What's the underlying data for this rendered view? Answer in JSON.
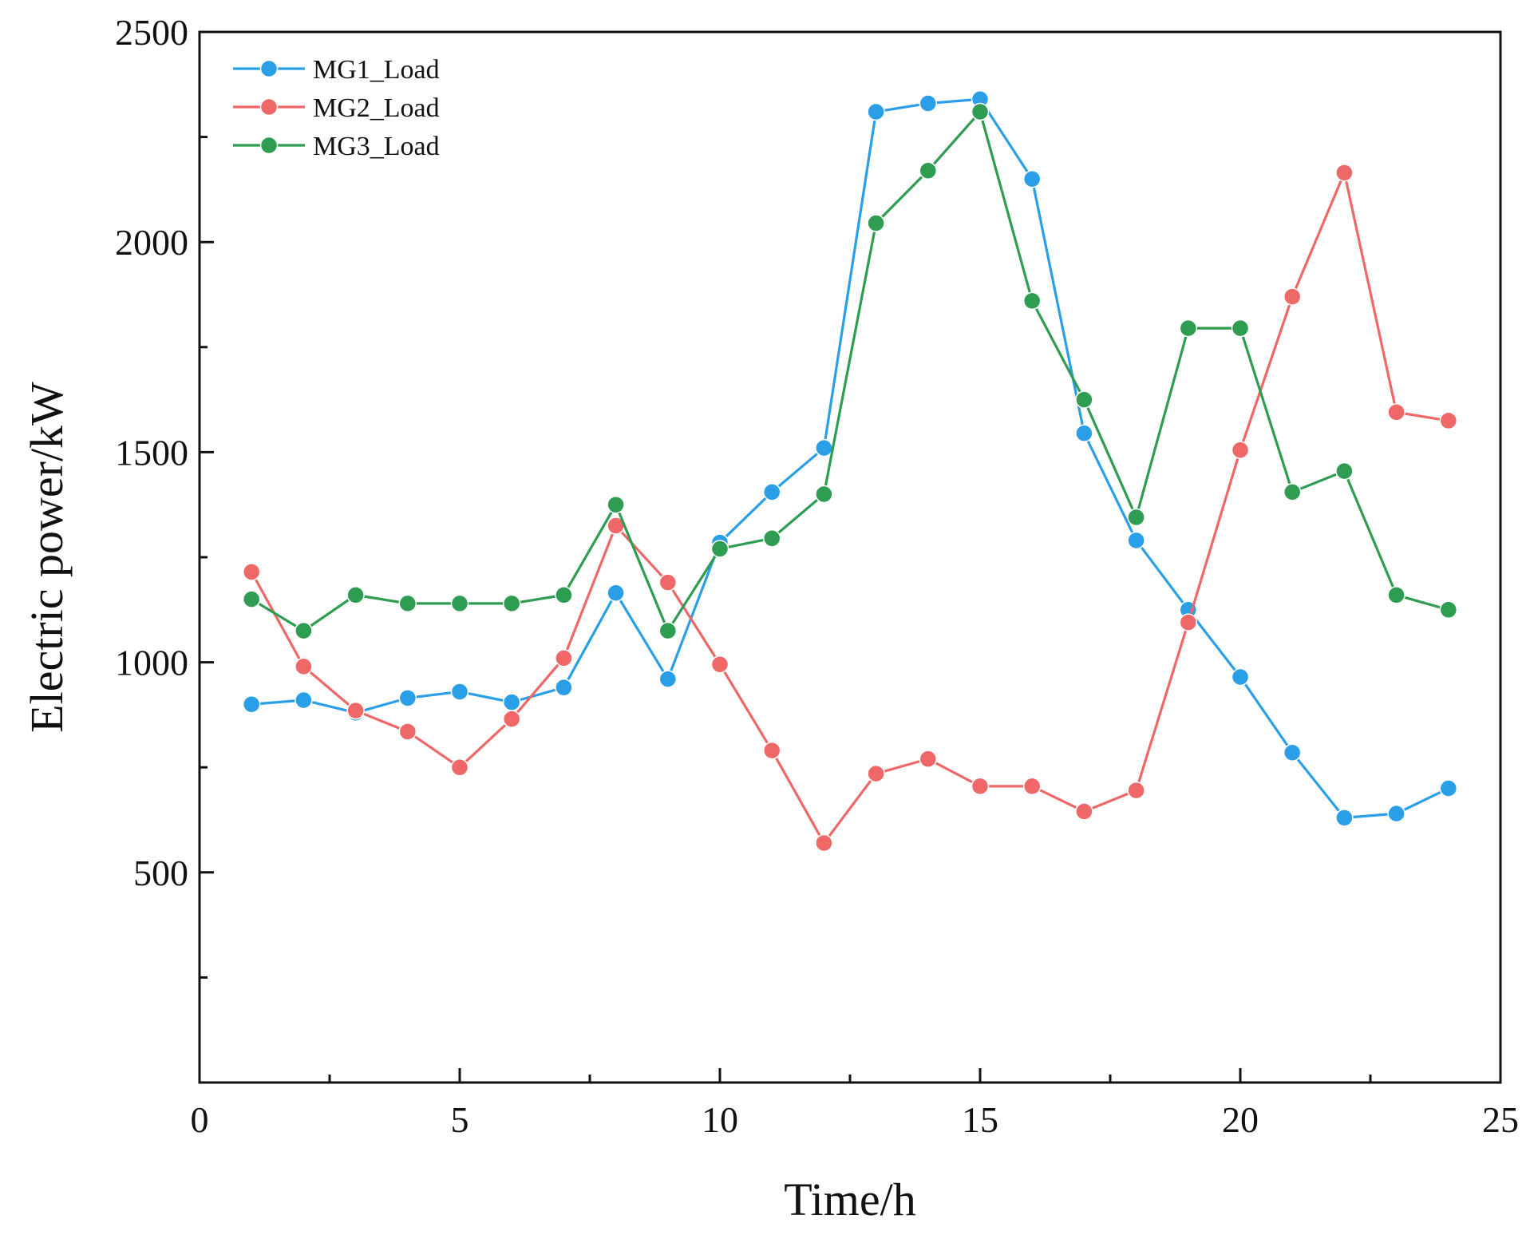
{
  "chart_data": {
    "type": "line",
    "title": "",
    "xlabel": "Time/h",
    "ylabel": "Electric power/kW",
    "xlim": [
      0,
      25
    ],
    "ylim": [
      0,
      2500
    ],
    "x_ticks": [
      0,
      5,
      10,
      15,
      20,
      25
    ],
    "x_tick_labels": [
      "0",
      "5",
      "10",
      "15",
      "20",
      "25"
    ],
    "y_ticks": [
      500,
      1000,
      1500,
      2000,
      2500
    ],
    "y_tick_labels": [
      "500",
      "1000",
      "1500",
      "2000",
      "2500"
    ],
    "legend_position": "top-left",
    "grid": false,
    "x": [
      1,
      2,
      3,
      4,
      5,
      6,
      7,
      8,
      9,
      10,
      11,
      12,
      13,
      14,
      15,
      16,
      17,
      18,
      19,
      20,
      21,
      22,
      23,
      24
    ],
    "series": [
      {
        "name": "MG1_Load",
        "color": "#2a9fe8",
        "values": [
          900,
          910,
          880,
          915,
          930,
          905,
          940,
          1165,
          960,
          1285,
          1405,
          1510,
          2310,
          2330,
          2340,
          2150,
          1545,
          1290,
          1125,
          965,
          785,
          630,
          640,
          700
        ]
      },
      {
        "name": "MG2_Load",
        "color": "#ef6767",
        "values": [
          1215,
          990,
          885,
          835,
          750,
          865,
          1010,
          1325,
          1190,
          995,
          790,
          570,
          735,
          770,
          705,
          705,
          645,
          695,
          1095,
          1505,
          1870,
          2165,
          1595,
          1575
        ]
      },
      {
        "name": "MG3_Load",
        "color": "#2e9c51",
        "values": [
          1150,
          1075,
          1160,
          1140,
          1140,
          1140,
          1160,
          1375,
          1075,
          1270,
          1295,
          1400,
          2045,
          2170,
          2310,
          1860,
          1625,
          1345,
          1795,
          1795,
          1405,
          1455,
          1160,
          1125
        ]
      }
    ]
  }
}
